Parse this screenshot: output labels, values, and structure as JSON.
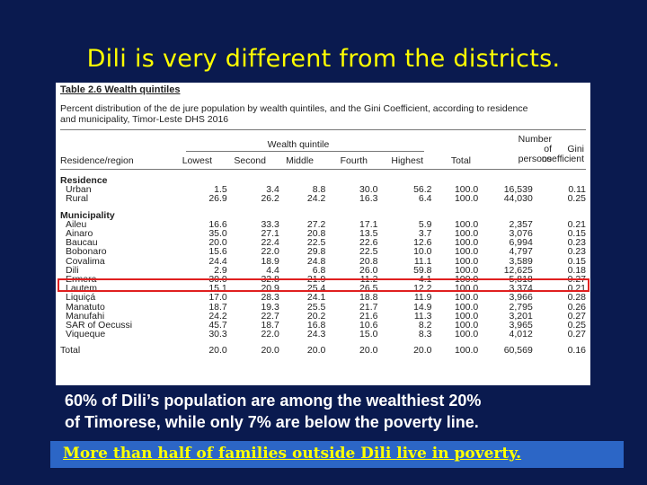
{
  "slide": {
    "title": "Dili is very different from the districts.",
    "caption_line1": "60% of Dili’s population are among the wealthiest 20%",
    "caption_line2": "of Timorese, while only 7% are below the poverty line.",
    "banner": "More than half of families outside Dili live in poverty.",
    "colors": {
      "background": "#0a1a4f",
      "title": "#ffff00",
      "banner_bg": "#2c66c6",
      "highlight": "#e02020"
    }
  },
  "table": {
    "caption": "Table 2.6 Wealth quintiles",
    "description_line1": "Percent distribution of the de jure population by wealth quintiles, and the Gini Coefficient, according to residence",
    "description_line2": "and municipality, Timor-Leste DHS 2016",
    "group_header": "Wealth quintile",
    "headers": {
      "region": "Residence/region",
      "lowest": "Lowest",
      "second": "Second",
      "middle": "Middle",
      "fourth": "Fourth",
      "highest": "Highest",
      "total": "Total",
      "persons_l1": "Number",
      "persons_l2": "of",
      "persons_l3": "persons",
      "gini_l1": "Gini",
      "gini_l2": "coefficient"
    },
    "section_residence": "Residence",
    "section_municipality": "Municipality",
    "rows": [
      [
        "Urban",
        "1.5",
        "3.4",
        "8.8",
        "30.0",
        "56.2",
        "100.0",
        "16,539",
        "0.11"
      ],
      [
        "Rural",
        "26.9",
        "26.2",
        "24.2",
        "16.3",
        "6.4",
        "100.0",
        "44,030",
        "0.25"
      ],
      [
        "Aileu",
        "16.6",
        "33.3",
        "27.2",
        "17.1",
        "5.9",
        "100.0",
        "2,357",
        "0.21"
      ],
      [
        "Ainaro",
        "35.0",
        "27.1",
        "20.8",
        "13.5",
        "3.7",
        "100.0",
        "3,076",
        "0.15"
      ],
      [
        "Baucau",
        "20.0",
        "22.4",
        "22.5",
        "22.6",
        "12.6",
        "100.0",
        "6,994",
        "0.23"
      ],
      [
        "Bobonaro",
        "15.6",
        "22.0",
        "29.8",
        "22.5",
        "10.0",
        "100.0",
        "4,797",
        "0.23"
      ],
      [
        "Covalima",
        "24.4",
        "18.9",
        "24.8",
        "20.8",
        "11.1",
        "100.0",
        "3,589",
        "0.15"
      ],
      [
        "Dili",
        "2.9",
        "4.4",
        "6.8",
        "26.0",
        "59.8",
        "100.0",
        "12,625",
        "0.18"
      ],
      [
        "Ermera",
        "30.0",
        "32.8",
        "21.9",
        "11.2",
        "4.1",
        "100.0",
        "5,818",
        "0.27"
      ],
      [
        "Lautem",
        "15.1",
        "20.9",
        "25.4",
        "26.5",
        "12.2",
        "100.0",
        "3,374",
        "0.21"
      ],
      [
        "Liquiçá",
        "17.0",
        "28.3",
        "24.1",
        "18.8",
        "11.9",
        "100.0",
        "3,966",
        "0.28"
      ],
      [
        "Manatuto",
        "18.7",
        "19.3",
        "25.5",
        "21.7",
        "14.9",
        "100.0",
        "2,795",
        "0.26"
      ],
      [
        "Manufahi",
        "24.2",
        "22.7",
        "20.2",
        "21.6",
        "11.3",
        "100.0",
        "3,201",
        "0.27"
      ],
      [
        "SAR of Oecussi",
        "45.7",
        "18.7",
        "16.8",
        "10.6",
        "8.2",
        "100.0",
        "3,965",
        "0.25"
      ],
      [
        "Viqueque",
        "30.3",
        "22.0",
        "24.3",
        "15.0",
        "8.3",
        "100.0",
        "4,012",
        "0.27"
      ]
    ],
    "total_row": [
      "Total",
      "20.0",
      "20.0",
      "20.0",
      "20.0",
      "20.0",
      "100.0",
      "60,569",
      "0.16"
    ]
  }
}
